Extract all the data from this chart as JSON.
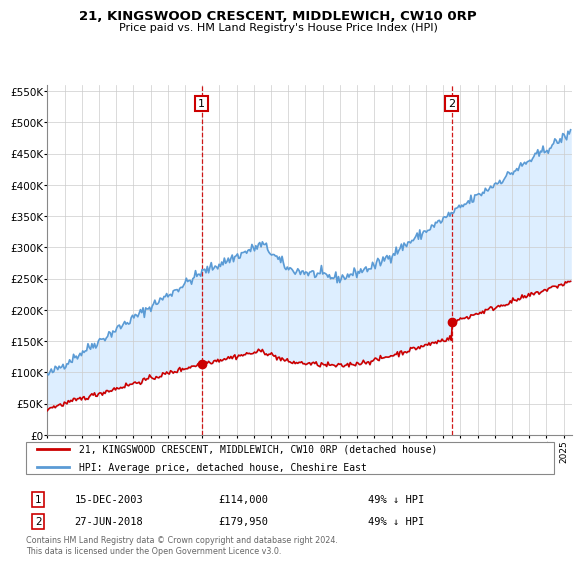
{
  "title": "21, KINGSWOOD CRESCENT, MIDDLEWICH, CW10 0RP",
  "subtitle": "Price paid vs. HM Land Registry's House Price Index (HPI)",
  "legend_line1": "21, KINGSWOOD CRESCENT, MIDDLEWICH, CW10 0RP (detached house)",
  "legend_line2": "HPI: Average price, detached house, Cheshire East",
  "annotation1_date": "15-DEC-2003",
  "annotation1_price": "£114,000",
  "annotation1_hpi": "49% ↓ HPI",
  "annotation2_date": "27-JUN-2018",
  "annotation2_price": "£179,950",
  "annotation2_hpi": "49% ↓ HPI",
  "footer": "Contains HM Land Registry data © Crown copyright and database right 2024.\nThis data is licensed under the Open Government Licence v3.0.",
  "sale_color": "#cc0000",
  "hpi_color": "#5b9bd5",
  "fill_color": "#ddeeff",
  "annotation_color": "#cc0000",
  "sale1_year": 2003.96,
  "sale1_price": 114000,
  "sale2_year": 2018.5,
  "sale2_price": 179950,
  "ylim": [
    0,
    560000
  ],
  "yticks": [
    0,
    50000,
    100000,
    150000,
    200000,
    250000,
    300000,
    350000,
    400000,
    450000,
    500000,
    550000
  ],
  "ytick_labels": [
    "£0",
    "£50K",
    "£100K",
    "£150K",
    "£200K",
    "£250K",
    "£300K",
    "£350K",
    "£400K",
    "£450K",
    "£500K",
    "£550K"
  ]
}
